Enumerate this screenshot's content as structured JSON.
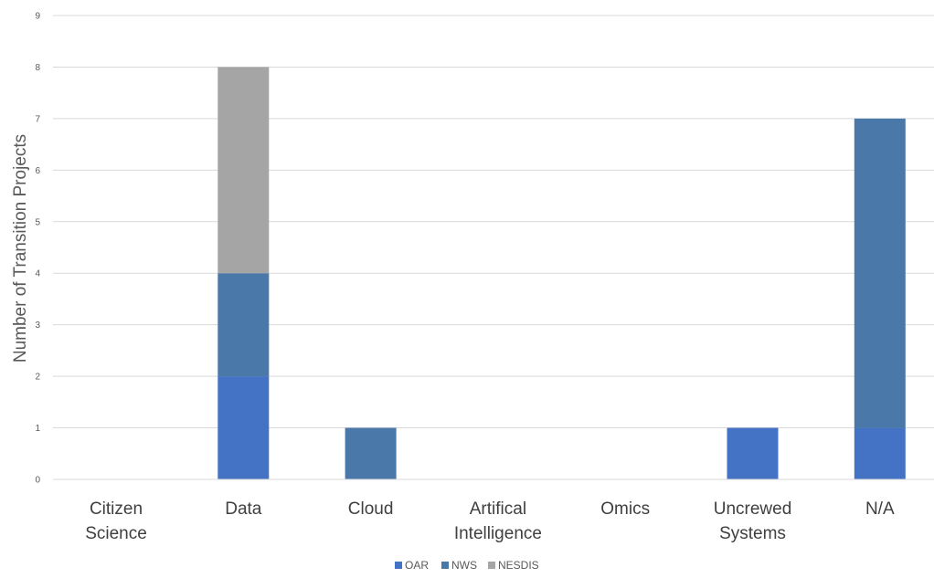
{
  "chart_data": {
    "type": "bar",
    "stacked": true,
    "ylabel": "Number of Transition Projects",
    "xlabel": "",
    "ylim": [
      0,
      9
    ],
    "yticks": [
      0,
      1,
      2,
      3,
      4,
      5,
      6,
      7,
      8,
      9
    ],
    "grid": true,
    "legend_position": "bottom",
    "categories": [
      [
        "Citizen",
        "Science"
      ],
      [
        "Data"
      ],
      [
        "Cloud"
      ],
      [
        "Artifical",
        "Intelligence"
      ],
      [
        "Omics"
      ],
      [
        "Uncrewed",
        "Systems"
      ],
      [
        "N/A"
      ]
    ],
    "series": [
      {
        "name": "OAR",
        "color": "#4472c4",
        "values": [
          0,
          2,
          0,
          0,
          0,
          1,
          1
        ]
      },
      {
        "name": "NWS",
        "color": "#4a78a8",
        "values": [
          0,
          2,
          1,
          0,
          0,
          0,
          6
        ]
      },
      {
        "name": "NESDIS",
        "color": "#a5a5a5",
        "values": [
          0,
          4,
          0,
          0,
          0,
          0,
          0
        ]
      }
    ]
  }
}
